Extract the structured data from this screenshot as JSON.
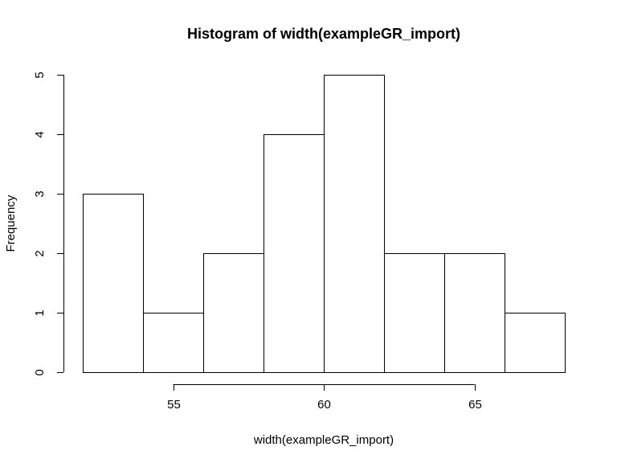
{
  "chart_data": {
    "type": "bar",
    "title": "Histogram of width(exampleGR_import)",
    "xlabel": "width(exampleGR_import)",
    "ylabel": "Frequency",
    "bins": [
      {
        "start": 52,
        "end": 54,
        "count": 3
      },
      {
        "start": 54,
        "end": 56,
        "count": 1
      },
      {
        "start": 56,
        "end": 58,
        "count": 2
      },
      {
        "start": 58,
        "end": 60,
        "count": 4
      },
      {
        "start": 60,
        "end": 62,
        "count": 5
      },
      {
        "start": 62,
        "end": 64,
        "count": 2
      },
      {
        "start": 64,
        "end": 66,
        "count": 2
      },
      {
        "start": 66,
        "end": 68,
        "count": 1
      }
    ],
    "xticks": [
      55,
      60,
      65
    ],
    "yticks": [
      0,
      1,
      2,
      3,
      4,
      5
    ],
    "xlim": [
      52,
      68
    ],
    "ylim": [
      0,
      5
    ],
    "grid": false,
    "bar_fill": "#ffffff",
    "bar_stroke": "#000000"
  }
}
